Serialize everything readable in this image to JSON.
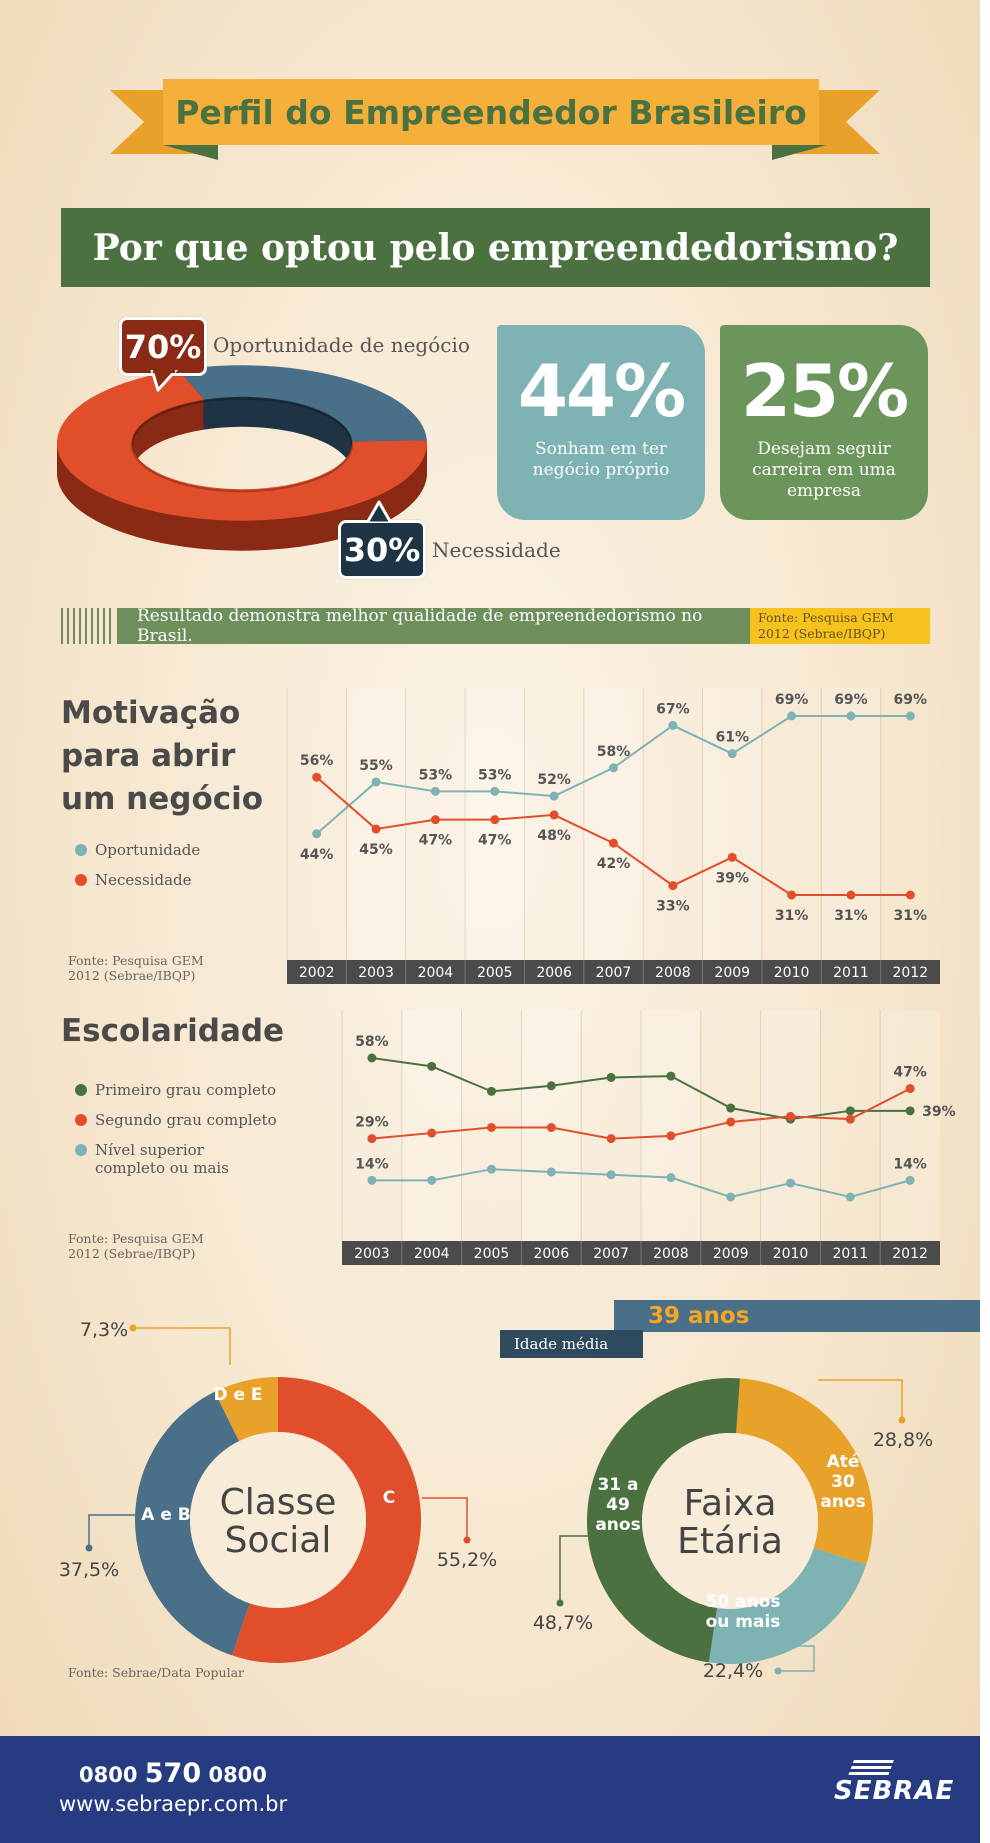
{
  "header": {
    "title": "Perfil do Empreendedor Brasileiro",
    "section_title": "Por que optou pelo empreendedorismo?"
  },
  "colors": {
    "green_dark": "#4c7140",
    "orange_red": "#e04e2c",
    "steel_blue": "#4a6f89",
    "teal": "#7fb2b2",
    "yellow": "#f5b03c",
    "navy_footer": "#263b82"
  },
  "why": {
    "opportunity": {
      "value": "70%",
      "label": "Oportunidade de negócio"
    },
    "necessity": {
      "value": "30%",
      "label": "Necessidade"
    },
    "dream": {
      "value": "44%",
      "caption": "Sonham em ter negócio próprio"
    },
    "career": {
      "value": "25%",
      "caption": "Desejam seguir carreira em uma empresa"
    },
    "result_text": "Resultado demonstra melhor qualidade de empreendedorismo no Brasil.",
    "source": "Fonte: Pesquisa GEM 2012 (Sebrae/IBQP)"
  },
  "motivation": {
    "title": "Motivação para abrir um negócio",
    "source": "Fonte: Pesquisa GEM 2012 (Sebrae/IBQP)"
  },
  "education": {
    "title": "Escolaridade",
    "source": "Fonte: Pesquisa GEM 2012 (Sebrae/IBQP)"
  },
  "social": {
    "center_line1": "Classe",
    "center_line2": "Social",
    "source": "Fonte: Sebrae/Data Popular"
  },
  "age": {
    "center_line1": "Faixa",
    "center_line2": "Etária",
    "average_value": "39 anos",
    "average_label": "Idade média"
  },
  "footer": {
    "phone_prefix": "0800",
    "phone_main": "570",
    "phone_suffix": "0800",
    "site": "www.sebraepr.com.br",
    "logo": "SEBRAE"
  },
  "chart_data": [
    {
      "type": "pie",
      "labels": [
        "Oportunidade de negócio",
        "Necessidade"
      ],
      "values": [
        70,
        30
      ]
    },
    {
      "type": "line",
      "title": "Motivação para abrir um negócio",
      "categories": [
        "2002",
        "2003",
        "2004",
        "2005",
        "2006",
        "2007",
        "2008",
        "2009",
        "2010",
        "2011",
        "2012"
      ],
      "series": [
        {
          "name": "Oportunidade",
          "color": "#7fb2b2",
          "values": [
            44,
            55,
            53,
            53,
            52,
            58,
            67,
            61,
            69,
            69,
            69
          ],
          "labels": [
            "44%",
            "55%",
            "53%",
            "53%",
            "52%",
            "58%",
            "67%",
            "61%",
            "69%",
            "69%",
            "69%"
          ]
        },
        {
          "name": "Necessidade",
          "color": "#e04e2c",
          "values": [
            56,
            45,
            47,
            47,
            48,
            42,
            33,
            39,
            31,
            31,
            31
          ],
          "labels": [
            "56%",
            "45%",
            "47%",
            "47%",
            "48%",
            "42%",
            "33%",
            "39%",
            "31%",
            "31%",
            "31%"
          ]
        }
      ]
    },
    {
      "type": "line",
      "title": "Escolaridade",
      "categories": [
        "2003",
        "2004",
        "2005",
        "2006",
        "2007",
        "2008",
        "2009",
        "2010",
        "2011",
        "2012"
      ],
      "series": [
        {
          "name": "Primeiro grau completo",
          "color": "#4c7140",
          "values": [
            58,
            55,
            46,
            48,
            51,
            51.5,
            40,
            36,
            39,
            39
          ],
          "end_labels": [
            "58%",
            "39%"
          ]
        },
        {
          "name": "Segundo grau completo",
          "color": "#e04e2c",
          "values": [
            29,
            31,
            33,
            33,
            29,
            30,
            35,
            37,
            36,
            47
          ],
          "end_labels": [
            "29%",
            "47%"
          ]
        },
        {
          "name": "Nível superior completo ou mais",
          "color": "#7fb2b2",
          "values": [
            14,
            14,
            18,
            17,
            16,
            15,
            8,
            13,
            8,
            14
          ],
          "end_labels": [
            "14%",
            "14%"
          ]
        }
      ]
    },
    {
      "type": "pie",
      "title": "Classe Social",
      "labels": [
        "C",
        "A e B",
        "D e E"
      ],
      "values": [
        55.2,
        37.5,
        7.3
      ],
      "value_labels": [
        "55,2%",
        "37,5%",
        "7,3%"
      ],
      "colors": [
        "#e04e2c",
        "#4a6f89",
        "#e8a22a"
      ]
    },
    {
      "type": "pie",
      "title": "Faixa Etária",
      "labels": [
        "Até 30 anos",
        "50 anos ou mais",
        "31 a 49 anos"
      ],
      "values": [
        28.8,
        22.4,
        48.7
      ],
      "value_labels": [
        "28,8%",
        "22,4%",
        "48,7%"
      ],
      "colors": [
        "#e8a22a",
        "#7fb2b2",
        "#4c7140"
      ]
    }
  ]
}
